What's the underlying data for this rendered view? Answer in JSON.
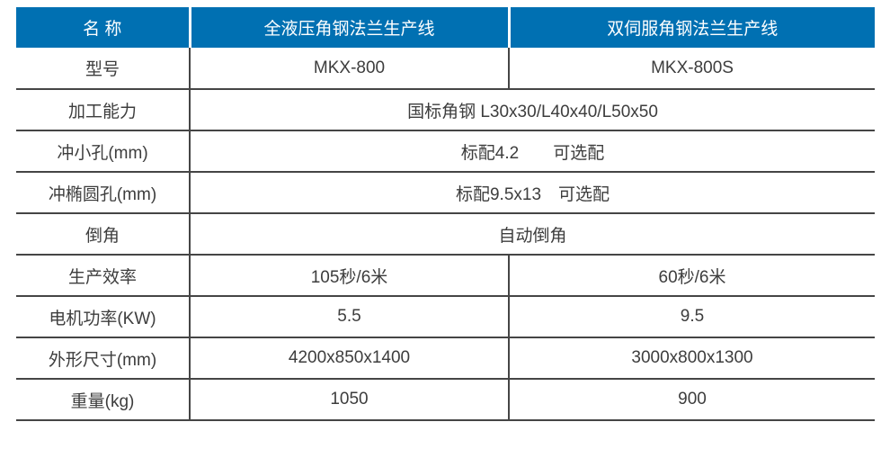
{
  "colors": {
    "header_bg": "#0070B2",
    "header_text": "#FFFFFF",
    "body_text": "#3D3D3D",
    "line": "#454545"
  },
  "table": {
    "header": {
      "name": "名 称",
      "machine1": "全液压角钢法兰生产线",
      "machine2": "双伺服角钢法兰生产线"
    },
    "rows": [
      {
        "label": "型号",
        "col1": "MKX-800",
        "col2": "MKX-800S"
      },
      {
        "label": "加工能力",
        "span": "国标角钢 L30x30/L40x40/L50x50"
      },
      {
        "label": "冲小孔(mm)",
        "span": "标配4.2　　可选配"
      },
      {
        "label": "冲椭圆孔(mm)",
        "span": "标配9.5x13　可选配"
      },
      {
        "label": "倒角",
        "span": "自动倒角"
      },
      {
        "label": "生产效率",
        "col1": "105秒/6米",
        "col2": "60秒/6米"
      },
      {
        "label": "电机功率(KW)",
        "col1": "5.5",
        "col2": "9.5"
      },
      {
        "label": "外形尺寸(mm)",
        "col1": "4200x850x1400",
        "col2": "3000x800x1300"
      },
      {
        "label": "重量(kg)",
        "col1": "1050",
        "col2": "900"
      }
    ]
  }
}
